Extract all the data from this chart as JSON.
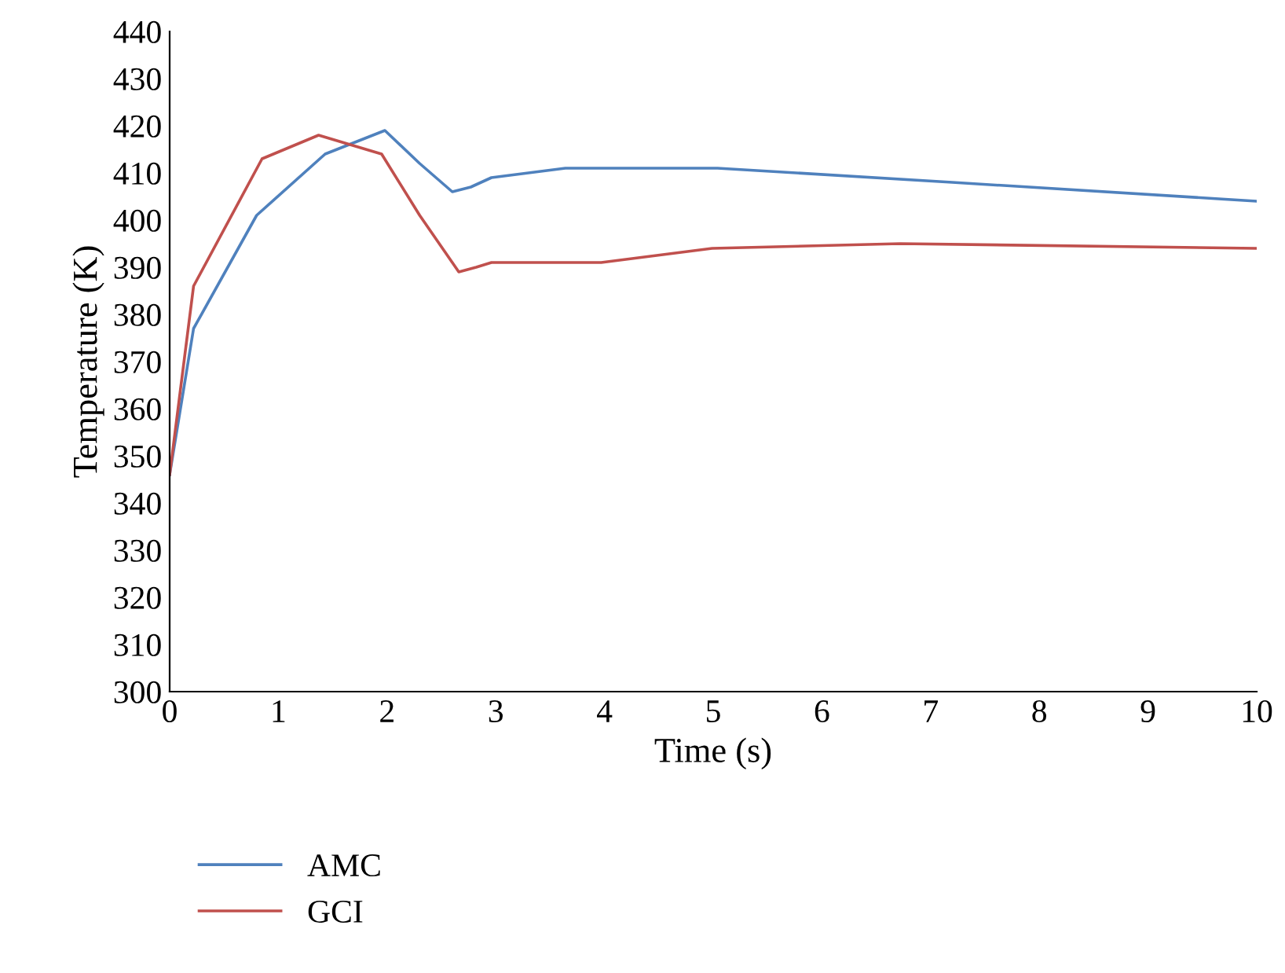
{
  "chart_data": {
    "type": "line",
    "xlabel": "Time (s)",
    "ylabel": "Temperature (K)",
    "xlim": [
      0,
      10
    ],
    "xticks": [
      0,
      1,
      2,
      3,
      4,
      5,
      6,
      7,
      8,
      9,
      10
    ],
    "ylim": [
      300,
      440
    ],
    "yticks": [
      300,
      310,
      320,
      330,
      340,
      350,
      360,
      370,
      380,
      390,
      400,
      410,
      420,
      430,
      440
    ],
    "grid": false,
    "legend": "bottom left",
    "marker": "none",
    "line_style": "solid",
    "series": [
      {
        "name": "AMC",
        "color": "#4f81bd",
        "x": [
          0,
          0.22,
          0.8,
          1.43,
          1.98,
          2.3,
          2.6,
          2.77,
          2.96,
          3.64,
          5.04,
          7.2,
          10
        ],
        "values": [
          346,
          377,
          401,
          414,
          419,
          412,
          406,
          407,
          409,
          411,
          411,
          408,
          404
        ]
      },
      {
        "name": "GCI",
        "color": "#c0504d",
        "x": [
          0,
          0.22,
          0.85,
          1.37,
          1.95,
          2.3,
          2.66,
          2.82,
          2.96,
          3.64,
          3.97,
          4.99,
          6.72,
          10
        ],
        "values": [
          346,
          386,
          413,
          418,
          414,
          401,
          389,
          390,
          391,
          391,
          391,
          394,
          395,
          394
        ]
      }
    ]
  }
}
